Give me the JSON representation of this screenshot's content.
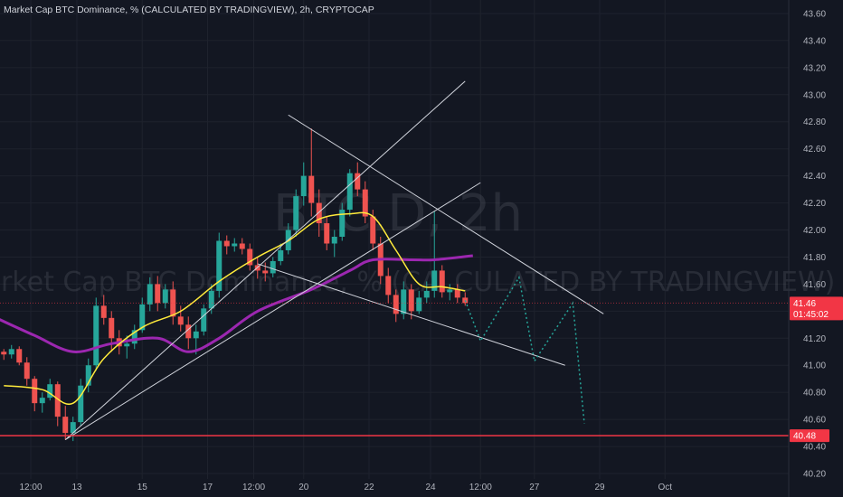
{
  "header": {
    "title": "Market Cap BTC Dominance, % (CALCULATED BY TRADINGVIEW), 2h, CRYPTOCAP"
  },
  "watermark": {
    "symbol": "BTC.D, 2h",
    "description": "Market Cap BTC Dominance, % (CALCULATED BY TRADINGVIEW)"
  },
  "price_tag": {
    "price": "41.46",
    "countdown": "01:45:02"
  },
  "level_tag": {
    "price": "40.48"
  },
  "colors": {
    "background": "#131722",
    "grid": "#1e222d",
    "up": "#26a69a",
    "down": "#ef5350",
    "ema_fast": "#ffeb3b",
    "ema_slow": "#9c27b0",
    "trendline": "#d1d4dc",
    "projection": "#26a69a",
    "level": "#f23645"
  },
  "chart_data": {
    "type": "candlestick",
    "title": "Market Cap BTC Dominance, % (CALCULATED BY TRADINGVIEW), 2h, CRYPTOCAP",
    "interval": "2h",
    "grid": true,
    "ylim": [
      40.16,
      43.7
    ],
    "xlim": [
      -0.5,
      86
    ],
    "y_ticks": [
      "43.60",
      "43.40",
      "43.20",
      "43.00",
      "42.80",
      "42.60",
      "42.40",
      "42.20",
      "42.00",
      "41.80",
      "41.60",
      "41.40",
      "41.20",
      "41.00",
      "40.80",
      "40.60",
      "40.40",
      "40.20"
    ],
    "x_ticks": [
      {
        "label": "12:00",
        "x": 3.5
      },
      {
        "label": "13",
        "x": 9.5
      },
      {
        "label": "15",
        "x": 18
      },
      {
        "label": "17",
        "x": 26.5
      },
      {
        "label": "12:00",
        "x": 32.5
      },
      {
        "label": "20",
        "x": 39
      },
      {
        "label": "22",
        "x": 47.5
      },
      {
        "label": "24",
        "x": 55.5
      },
      {
        "label": "12:00",
        "x": 62
      },
      {
        "label": "27",
        "x": 69
      },
      {
        "label": "29",
        "x": 77.5
      },
      {
        "label": "Oct",
        "x": 86
      }
    ],
    "candles": [
      [
        41.1,
        41.12,
        41.04,
        41.08
      ],
      [
        41.08,
        41.15,
        41.05,
        41.12
      ],
      [
        41.12,
        41.14,
        41.0,
        41.02
      ],
      [
        41.02,
        41.06,
        40.85,
        40.9
      ],
      [
        40.9,
        40.92,
        40.66,
        40.72
      ],
      [
        40.72,
        40.8,
        40.65,
        40.76
      ],
      [
        40.76,
        40.9,
        40.74,
        40.86
      ],
      [
        40.86,
        40.88,
        40.55,
        40.62
      ],
      [
        40.62,
        40.7,
        40.45,
        40.5
      ],
      [
        40.5,
        40.62,
        40.44,
        40.58
      ],
      [
        40.58,
        40.9,
        40.55,
        40.85
      ],
      [
        40.85,
        41.05,
        40.8,
        41.0
      ],
      [
        41.0,
        41.5,
        40.96,
        41.44
      ],
      [
        41.44,
        41.52,
        41.3,
        41.35
      ],
      [
        41.35,
        41.4,
        41.1,
        41.2
      ],
      [
        41.2,
        41.26,
        41.08,
        41.14
      ],
      [
        41.14,
        41.22,
        41.05,
        41.16
      ],
      [
        41.16,
        41.3,
        41.12,
        41.26
      ],
      [
        41.26,
        41.5,
        41.24,
        41.45
      ],
      [
        41.45,
        41.65,
        41.4,
        41.6
      ],
      [
        41.6,
        41.66,
        41.4,
        41.46
      ],
      [
        41.46,
        41.6,
        41.42,
        41.56
      ],
      [
        41.56,
        41.62,
        41.3,
        41.36
      ],
      [
        41.36,
        41.44,
        41.25,
        41.3
      ],
      [
        41.3,
        41.36,
        41.12,
        41.2
      ],
      [
        41.2,
        41.3,
        41.08,
        41.25
      ],
      [
        41.25,
        41.45,
        41.22,
        41.42
      ],
      [
        41.42,
        41.6,
        41.38,
        41.55
      ],
      [
        41.55,
        41.98,
        41.5,
        41.92
      ],
      [
        41.92,
        41.96,
        41.82,
        41.88
      ],
      [
        41.88,
        41.94,
        41.84,
        41.9
      ],
      [
        41.9,
        41.94,
        41.82,
        41.86
      ],
      [
        41.86,
        41.9,
        41.7,
        41.74
      ],
      [
        41.74,
        41.8,
        41.64,
        41.7
      ],
      [
        41.7,
        41.76,
        41.62,
        41.68
      ],
      [
        41.68,
        41.8,
        41.65,
        41.77
      ],
      [
        41.77,
        41.9,
        41.74,
        41.85
      ],
      [
        41.85,
        42.05,
        41.82,
        42.0
      ],
      [
        42.0,
        42.3,
        41.95,
        42.25
      ],
      [
        42.25,
        42.5,
        42.18,
        42.4
      ],
      [
        42.4,
        42.75,
        42.1,
        42.2
      ],
      [
        42.2,
        42.3,
        41.95,
        42.05
      ],
      [
        42.05,
        42.1,
        41.85,
        41.9
      ],
      [
        41.9,
        42.0,
        41.8,
        41.95
      ],
      [
        41.95,
        42.2,
        41.92,
        42.15
      ],
      [
        42.15,
        42.45,
        42.1,
        42.42
      ],
      [
        42.42,
        42.5,
        42.25,
        42.3
      ],
      [
        42.3,
        42.36,
        42.05,
        42.1
      ],
      [
        42.1,
        42.15,
        41.85,
        41.9
      ],
      [
        41.9,
        41.95,
        41.6,
        41.66
      ],
      [
        41.66,
        41.72,
        41.46,
        41.52
      ],
      [
        41.52,
        41.56,
        41.32,
        41.38
      ],
      [
        41.38,
        41.62,
        41.34,
        41.56
      ],
      [
        41.56,
        41.6,
        41.34,
        41.4
      ],
      [
        41.4,
        41.55,
        41.38,
        41.5
      ],
      [
        41.5,
        41.62,
        41.46,
        41.55
      ],
      [
        41.55,
        42.14,
        41.5,
        41.7
      ],
      [
        41.7,
        41.74,
        41.5,
        41.54
      ],
      [
        41.54,
        41.6,
        41.48,
        41.56
      ],
      [
        41.56,
        41.6,
        41.46,
        41.5
      ],
      [
        41.5,
        41.54,
        41.44,
        41.46
      ]
    ],
    "ema_fast": [
      [
        0,
        40.85
      ],
      [
        5,
        40.82
      ],
      [
        9,
        40.72
      ],
      [
        13,
        41.05
      ],
      [
        18,
        41.28
      ],
      [
        23,
        41.4
      ],
      [
        28,
        41.62
      ],
      [
        33,
        41.8
      ],
      [
        37,
        41.92
      ],
      [
        41,
        42.08
      ],
      [
        45,
        42.12
      ],
      [
        48,
        42.1
      ],
      [
        51,
        41.85
      ],
      [
        54,
        41.6
      ],
      [
        57,
        41.58
      ],
      [
        60,
        41.55
      ]
    ],
    "ema_slow": [
      [
        -1,
        41.35
      ],
      [
        4,
        41.22
      ],
      [
        9,
        41.1
      ],
      [
        14,
        41.16
      ],
      [
        20,
        41.2
      ],
      [
        24,
        41.1
      ],
      [
        28,
        41.2
      ],
      [
        33,
        41.4
      ],
      [
        40,
        41.56
      ],
      [
        45,
        41.7
      ],
      [
        48,
        41.78
      ],
      [
        53,
        41.78
      ],
      [
        56,
        41.78
      ],
      [
        61,
        41.81
      ]
    ],
    "trend_lines": [
      {
        "from": [
          8,
          40.45
        ],
        "to": [
          60,
          43.1
        ]
      },
      {
        "from": [
          8,
          40.45
        ],
        "to": [
          62,
          42.35
        ]
      },
      {
        "from": [
          37,
          42.85
        ],
        "to": [
          78,
          41.38
        ]
      },
      {
        "from": [
          33,
          41.75
        ],
        "to": [
          73,
          41.0
        ]
      }
    ],
    "projection": [
      [
        60,
        41.48
      ],
      [
        62,
        41.18
      ],
      [
        67,
        41.65
      ],
      [
        69,
        41.03
      ],
      [
        74,
        41.46
      ],
      [
        75.5,
        40.57
      ]
    ],
    "level": 40.48,
    "last_price": 41.46
  }
}
